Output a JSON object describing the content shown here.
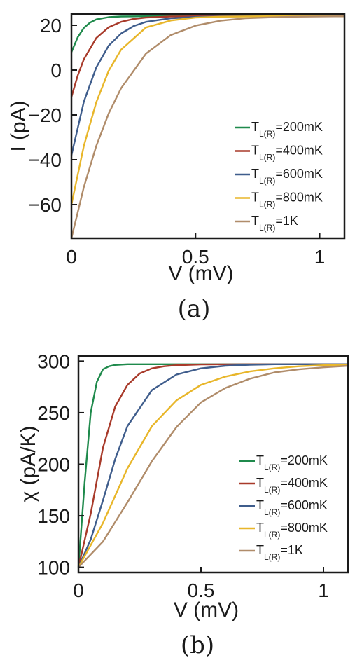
{
  "chart_data": [
    {
      "type": "line",
      "panel_label": "(a)",
      "xlabel": "V (mV)",
      "ylabel": "I (pA)",
      "xlim": [
        0,
        1.1
      ],
      "ylim": [
        -75,
        25
      ],
      "xticks": [
        0,
        0.5,
        1
      ],
      "xtick_labels": [
        "0",
        "0.5",
        "1"
      ],
      "yticks": [
        -60,
        -40,
        -20,
        0,
        20
      ],
      "ytick_labels": [
        "−60",
        "−40",
        "−20",
        "0",
        "20"
      ],
      "grid": false,
      "legend_position": "bottom-right",
      "series": [
        {
          "legend_main": "T",
          "legend_sub": "L(R)",
          "legend_tail": "=200mK",
          "color": "#1f8a4c",
          "x": [
            0,
            0.025,
            0.05,
            0.075,
            0.1,
            0.15,
            0.2,
            0.3,
            0.5,
            0.8,
            1.1
          ],
          "y": [
            8,
            14.6,
            18.8,
            21.2,
            22.6,
            23.6,
            23.9,
            24,
            24,
            24,
            24
          ]
        },
        {
          "legend_main": "T",
          "legend_sub": "L(R)",
          "legend_tail": "=400mK",
          "color": "#a83a2a",
          "x": [
            0,
            0.025,
            0.05,
            0.1,
            0.15,
            0.2,
            0.25,
            0.3,
            0.4,
            0.5,
            0.7,
            1.1
          ],
          "y": [
            -12,
            -2.5,
            4.8,
            14.3,
            19.1,
            21.5,
            22.8,
            23.4,
            23.9,
            24,
            24,
            24
          ]
        },
        {
          "legend_main": "T",
          "legend_sub": "L(R)",
          "legend_tail": "=600mK",
          "color": "#3f5d8c",
          "x": [
            0,
            0.05,
            0.1,
            0.15,
            0.2,
            0.25,
            0.3,
            0.4,
            0.5,
            0.6,
            0.8,
            1.1
          ],
          "y": [
            -38,
            -14.1,
            1.2,
            10.9,
            16.3,
            19.6,
            21.5,
            23.1,
            23.7,
            23.9,
            24,
            24
          ]
        },
        {
          "legend_main": "T",
          "legend_sub": "L(R)",
          "legend_tail": "=800mK",
          "color": "#e8b62a",
          "x": [
            0,
            0.05,
            0.1,
            0.15,
            0.2,
            0.3,
            0.4,
            0.5,
            0.6,
            0.7,
            0.8,
            1.1
          ],
          "y": [
            -60,
            -33.8,
            -14.3,
            -0.3,
            9.1,
            19.0,
            22.1,
            23.4,
            23.8,
            23.9,
            24,
            24
          ]
        },
        {
          "legend_main": "T",
          "legend_sub": "L(R)",
          "legend_tail": "=1K",
          "color": "#b08c6a",
          "x": [
            0,
            0.05,
            0.1,
            0.15,
            0.2,
            0.3,
            0.4,
            0.5,
            0.6,
            0.7,
            0.8,
            0.9,
            1.1
          ],
          "y": [
            -75,
            -52.2,
            -33.8,
            -19.3,
            -8.1,
            7.3,
            15.6,
            19.8,
            22.0,
            23.1,
            23.5,
            23.8,
            24
          ]
        }
      ]
    },
    {
      "type": "line",
      "panel_label": "(b)",
      "xlabel": "V (mV)",
      "ylabel": "χ (pA/K)",
      "xlim": [
        0,
        1.1
      ],
      "ylim": [
        95,
        305
      ],
      "xticks": [
        0,
        0.5,
        1
      ],
      "xtick_labels": [
        "0",
        "0.5",
        "1"
      ],
      "yticks": [
        100,
        150,
        200,
        250,
        300
      ],
      "ytick_labels": [
        "100",
        "150",
        "200",
        "250",
        "300"
      ],
      "grid": false,
      "legend_position": "bottom-right",
      "series": [
        {
          "legend_main": "T",
          "legend_sub": "L(R)",
          "legend_tail": "=200mK",
          "color": "#1f8a4c",
          "x": [
            0,
            0.025,
            0.05,
            0.075,
            0.1,
            0.125,
            0.15,
            0.2,
            0.3,
            0.5,
            1.1
          ],
          "y": [
            100,
            182,
            250,
            280,
            292,
            295,
            296.3,
            297,
            297,
            297,
            297
          ]
        },
        {
          "legend_main": "T",
          "legend_sub": "L(R)",
          "legend_tail": "=400mK",
          "color": "#a83a2a",
          "x": [
            0,
            0.05,
            0.1,
            0.15,
            0.2,
            0.25,
            0.3,
            0.35,
            0.4,
            0.5,
            0.7,
            1.1
          ],
          "y": [
            100,
            152,
            216,
            256,
            277,
            288,
            293,
            295,
            296,
            296.8,
            297,
            297
          ]
        },
        {
          "legend_main": "T",
          "legend_sub": "L(R)",
          "legend_tail": "=600mK",
          "color": "#3f5d8c",
          "x": [
            0,
            0.05,
            0.1,
            0.15,
            0.2,
            0.3,
            0.4,
            0.5,
            0.6,
            0.7,
            0.8,
            1.1
          ],
          "y": [
            100,
            127,
            165,
            205,
            237,
            272,
            287,
            293,
            295.5,
            296.5,
            297,
            297
          ]
        },
        {
          "legend_main": "T",
          "legend_sub": "L(R)",
          "legend_tail": "=800mK",
          "color": "#e8b62a",
          "x": [
            0,
            0.1,
            0.2,
            0.3,
            0.4,
            0.5,
            0.6,
            0.7,
            0.8,
            0.9,
            1.0,
            1.1
          ],
          "y": [
            100,
            143,
            196,
            237,
            262,
            277,
            285,
            290,
            293,
            295,
            296,
            296.5
          ]
        },
        {
          "legend_main": "T",
          "legend_sub": "L(R)",
          "legend_tail": "=1K",
          "color": "#b08c6a",
          "x": [
            0,
            0.1,
            0.2,
            0.3,
            0.4,
            0.5,
            0.6,
            0.7,
            0.8,
            0.9,
            1.0,
            1.1
          ],
          "y": [
            100,
            125,
            163,
            203,
            236,
            260,
            274,
            283,
            289,
            292,
            294,
            295.5
          ]
        }
      ]
    }
  ]
}
